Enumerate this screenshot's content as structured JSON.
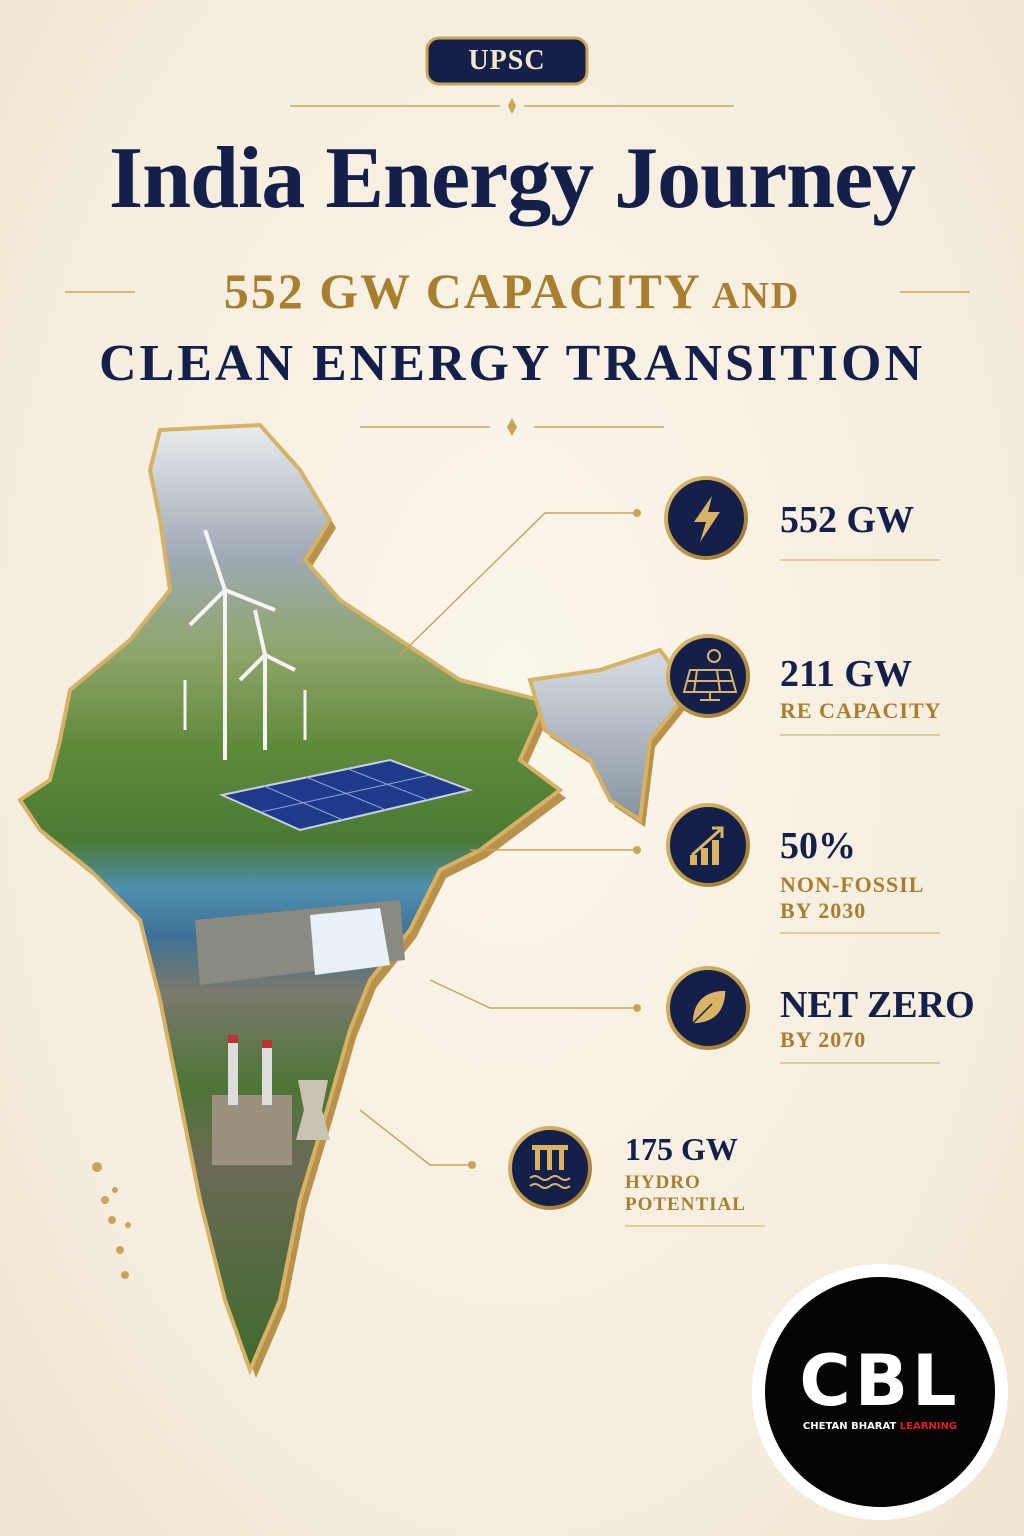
{
  "badge": "UPSC",
  "title": "India Energy Journey",
  "subtitle": {
    "highlight": "552 GW CAPACITY",
    "connector": "AND",
    "line2": "CLEAN ENERGY TRANSITION"
  },
  "stats": [
    {
      "value": "552 GW"
    },
    {
      "value": "211 GW",
      "label_lines": [
        "RE CAPACITY"
      ]
    },
    {
      "value": "50%",
      "label_lines": [
        "NON-FOSSIL",
        "BY 2030"
      ]
    },
    {
      "value": "NET ZERO",
      "label_lines": [
        "BY 2070"
      ]
    },
    {
      "value": "175 GW",
      "label_lines": [
        "HYDRO",
        "POTENTIAL"
      ]
    }
  ],
  "logo": {
    "mark": "CBL",
    "name_primary": "CHETAN BHARAT",
    "name_accent": "LEARNING"
  }
}
